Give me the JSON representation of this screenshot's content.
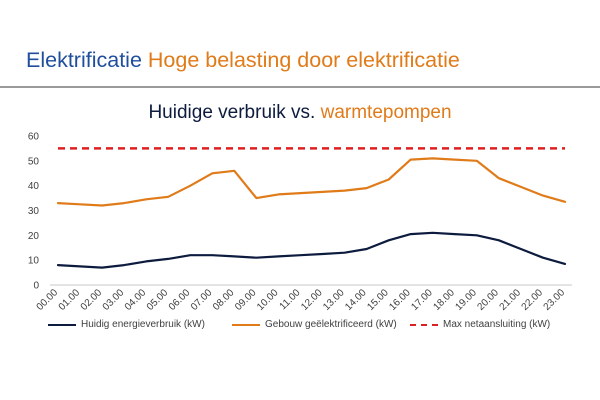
{
  "slide": {
    "title_part1": "Elektrificatie",
    "title_part2": "Hoge belasting door elektrificatie"
  },
  "chart_data": {
    "type": "line",
    "title_part1": "Huidige verbruik",
    "title_part2": "vs.",
    "title_part3": "warmtepompen",
    "xlabel": "",
    "ylabel": "",
    "ylim": [
      0,
      60
    ],
    "yticks": [
      0,
      10,
      20,
      30,
      40,
      50,
      60
    ],
    "grid": false,
    "legend_position": "bottom",
    "x": [
      "00.00",
      "01.00",
      "02.00",
      "03.00",
      "04.00",
      "05.00",
      "06.00",
      "07.00",
      "08.00",
      "09.00",
      "10.00",
      "11.00",
      "12.00",
      "13.00",
      "14.00",
      "15.00",
      "16.00",
      "17.00",
      "18.00",
      "19.00",
      "20.00",
      "21.00",
      "22.00",
      "23.00"
    ],
    "series": [
      {
        "name": "Huidig energieverbruik (kW)",
        "color": "#0d1b3e",
        "style": "solid",
        "values": [
          8,
          7.5,
          7,
          8,
          9.5,
          10.5,
          12,
          12,
          11.5,
          11,
          11.5,
          12,
          12.5,
          13,
          14.5,
          18,
          20.5,
          21,
          20.5,
          20,
          18,
          14.5,
          11,
          8.5
        ]
      },
      {
        "name": "Gebouw geëlektrificeerd (kW)",
        "color": "#e07b1a",
        "style": "solid",
        "values": [
          33,
          32.5,
          32,
          33,
          34.5,
          35.5,
          40,
          45,
          46,
          35,
          36.5,
          37,
          37.5,
          38,
          39,
          42.5,
          50.5,
          51,
          50.5,
          50,
          43,
          39.5,
          36,
          33.5
        ]
      },
      {
        "name": "Max netaansluiting (kW)",
        "color": "#e02020",
        "style": "dashed",
        "values": [
          55,
          55,
          55,
          55,
          55,
          55,
          55,
          55,
          55,
          55,
          55,
          55,
          55,
          55,
          55,
          55,
          55,
          55,
          55,
          55,
          55,
          55,
          55,
          55
        ]
      }
    ]
  }
}
